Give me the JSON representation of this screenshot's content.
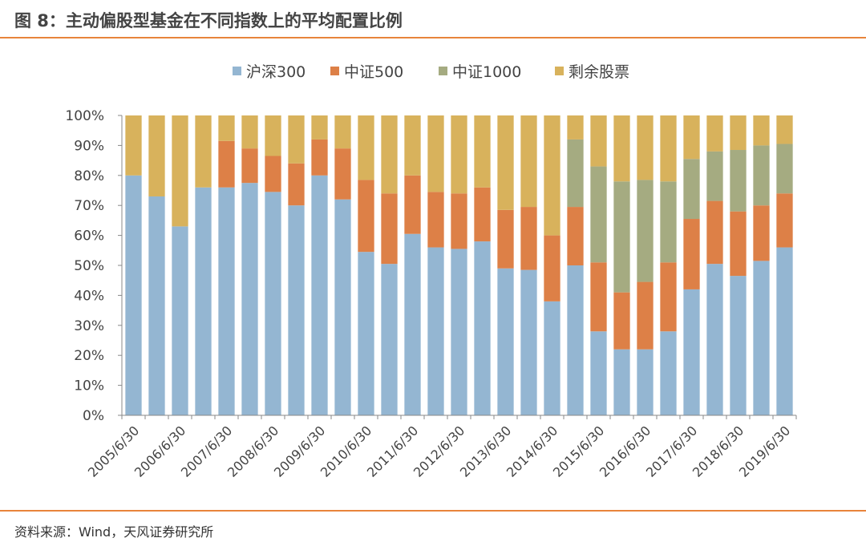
{
  "header": {
    "title": "图 8：主动偏股型基金在不同指数上的平均配置比例"
  },
  "footer": {
    "source": "资料来源：Wind，天风证券研究所"
  },
  "chart_data": {
    "type": "bar",
    "stacked": true,
    "title": "",
    "xlabel": "",
    "ylabel": "",
    "ylim": [
      0,
      100
    ],
    "y_ticks": [
      "0%",
      "10%",
      "20%",
      "30%",
      "40%",
      "50%",
      "60%",
      "70%",
      "80%",
      "90%",
      "100%"
    ],
    "x_tick_labels": [
      "2005/6/30",
      "2006/6/30",
      "2007/6/30",
      "2008/6/30",
      "2009/6/30",
      "2010/6/30",
      "2011/6/30",
      "2012/6/30",
      "2013/6/30",
      "2014/6/30",
      "2015/6/30",
      "2016/6/30",
      "2017/6/30",
      "2018/6/30",
      "2019/6/30"
    ],
    "legend_position": "top",
    "grid": false,
    "series": [
      {
        "name": "沪深300",
        "color": "#94b6d2",
        "values": [
          80,
          73,
          63,
          76,
          76,
          77.5,
          74.5,
          70,
          80,
          72,
          54.5,
          50.5,
          60.5,
          56,
          55.5,
          58,
          49,
          48.5,
          38,
          50,
          28,
          22,
          22,
          28,
          42,
          50.5,
          46.5,
          51.5,
          56
        ]
      },
      {
        "name": "中证500",
        "color": "#dd8047",
        "values": [
          0,
          0,
          0,
          0,
          15.5,
          11.5,
          12,
          14,
          12,
          17,
          24,
          23.5,
          19.5,
          18.5,
          18.5,
          18,
          19.5,
          21,
          22,
          19.5,
          23,
          19,
          22.5,
          23,
          23.5,
          21,
          21.5,
          18.5,
          18
        ]
      },
      {
        "name": "中证1000",
        "color": "#a5ab81",
        "values": [
          0,
          0,
          0,
          0,
          0,
          0,
          0,
          0,
          0,
          0,
          0,
          0,
          0,
          0,
          0,
          0,
          0,
          0,
          0,
          22.5,
          32,
          37,
          34,
          27,
          20,
          16.5,
          20.5,
          20,
          16.5
        ]
      },
      {
        "name": "剩余股票",
        "color": "#d8b25c",
        "values": [
          20,
          27,
          37,
          24,
          8.5,
          11,
          13.5,
          16,
          8,
          11,
          21.5,
          26,
          20,
          25.5,
          26,
          24,
          31.5,
          30.5,
          40,
          8,
          17,
          22,
          21.5,
          22,
          14.5,
          12,
          11.5,
          10,
          9.5
        ]
      }
    ]
  }
}
